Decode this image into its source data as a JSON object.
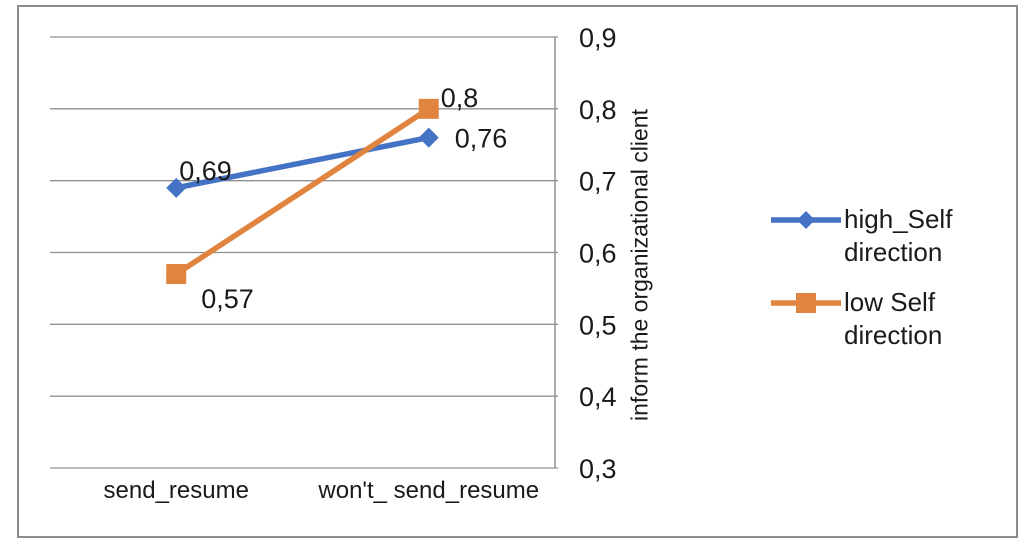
{
  "figure": {
    "background": "#FFFFFF",
    "border_color": "#8C8C8C",
    "grid_color": "#909090",
    "axis_line_color": "#909090",
    "text_color": "#1A1A1A"
  },
  "chart_data": {
    "type": "line",
    "title": "",
    "xlabel": "",
    "ylabel": "inform the organizational client",
    "categories": [
      "send_resume",
      "won't_ send_resume"
    ],
    "series": [
      {
        "name": "high_Self direction",
        "values": [
          0.69,
          0.76
        ],
        "data_labels": [
          "0,69",
          "0,76"
        ],
        "color": "#4472C4",
        "marker": "diamond"
      },
      {
        "name": "low Self direction",
        "values": [
          0.57,
          0.8
        ],
        "data_labels": [
          "0,57",
          "0,8"
        ],
        "color": "#E08440",
        "marker": "square"
      }
    ],
    "ylim": [
      0.3,
      0.9
    ],
    "yticks": [
      0.9,
      0.8,
      0.7,
      0.6,
      0.5,
      0.4,
      0.3
    ],
    "ytick_labels": [
      "0,9",
      "0,8",
      "0,7",
      "0,6",
      "0,5",
      "0,4",
      "0,3"
    ],
    "decimal_separator": ",",
    "grid": "horizontal",
    "y_axis_side": "right",
    "legend_position": "right"
  }
}
